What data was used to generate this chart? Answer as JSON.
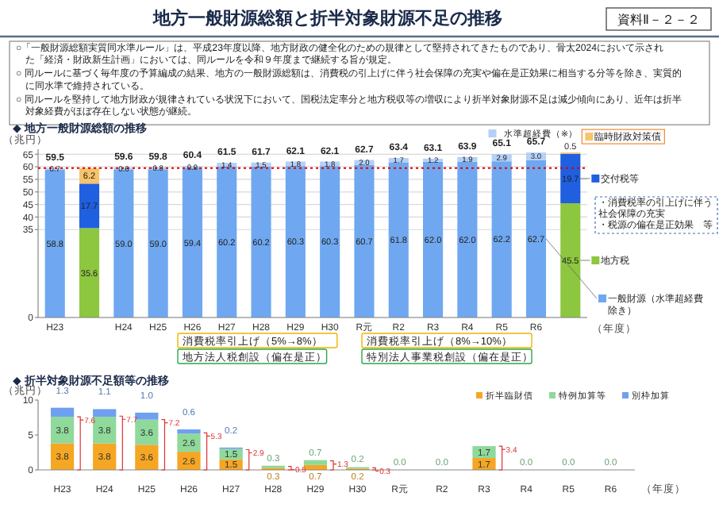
{
  "chart_data": [
    {
      "type": "bar",
      "title": "地方一般財源総額と折半対象財源不足の推移",
      "subtitle": "◆ 地方一般財源総額の推移",
      "ylabel": "（兆円）",
      "xlabel": "（年度）",
      "categories": [
        "H23",
        null,
        "H24",
        "H25",
        "H26",
        "H27",
        "H28",
        "H29",
        "H30",
        "R元",
        "R2",
        "R3",
        "R4",
        "R5",
        "R6",
        null
      ],
      "stacked": true,
      "grid": "y",
      "legend": "right",
      "ylim": [
        0,
        67
      ],
      "yticks": [
        0,
        35,
        40,
        45,
        50,
        55,
        60,
        65
      ],
      "series": [
        {
          "name": "一般財源（水準超経費除き）",
          "color": "#6fa8f0",
          "values": [
            58.8,
            null,
            59.0,
            59.0,
            59.4,
            60.2,
            60.2,
            60.3,
            60.3,
            60.7,
            61.8,
            62.0,
            62.0,
            62.2,
            62.7,
            null
          ],
          "value_labels": [
            "58.8",
            null,
            "59.0",
            "59.0",
            "59.4",
            "60.2",
            "60.2",
            "60.3",
            "60.3",
            "60.7",
            "61.8",
            "62.0",
            "62.0",
            "62.2",
            "62.7",
            null
          ]
        },
        {
          "name": "地方税",
          "color": "#8dc63f",
          "values": [
            null,
            35.6,
            null,
            null,
            null,
            null,
            null,
            null,
            null,
            null,
            null,
            null,
            null,
            null,
            null,
            45.5
          ],
          "value_labels": [
            null,
            "35.6",
            null,
            null,
            null,
            null,
            null,
            null,
            null,
            null,
            null,
            null,
            null,
            null,
            null,
            "45.5"
          ]
        },
        {
          "name": "交付税等",
          "color": "#1f5fe0",
          "values": [
            null,
            17.7,
            null,
            null,
            null,
            null,
            null,
            null,
            null,
            null,
            null,
            null,
            null,
            null,
            null,
            19.7
          ],
          "value_labels": [
            null,
            "17.7",
            null,
            null,
            null,
            null,
            null,
            null,
            null,
            null,
            null,
            null,
            null,
            null,
            null,
            "19.7"
          ]
        },
        {
          "name": "水準超経費（※）",
          "color": "#b5d0f7",
          "values": [
            0.7,
            null,
            0.6,
            0.8,
            0.9,
            1.4,
            1.5,
            1.8,
            1.8,
            2.0,
            1.7,
            1.2,
            1.9,
            2.9,
            3.0,
            null
          ],
          "value_labels": [
            "0.7",
            null,
            "0.6",
            "0.8",
            "0.9",
            "1.4",
            "1.5",
            "1.8",
            "1.8",
            "2.0",
            "1.7",
            "1.2",
            "1.9",
            "2.9",
            "3.0",
            null
          ]
        },
        {
          "name": "臨時財政対策債",
          "color": "#f7c36b",
          "values": [
            null,
            6.2,
            null,
            null,
            null,
            null,
            null,
            null,
            null,
            null,
            null,
            null,
            null,
            null,
            null,
            0.5
          ],
          "value_labels": [
            null,
            "6.2",
            null,
            null,
            null,
            null,
            null,
            null,
            null,
            null,
            null,
            null,
            null,
            null,
            null,
            "0.5"
          ]
        }
      ],
      "totals": [
        "59.5",
        null,
        "59.6",
        "59.8",
        "60.4",
        "61.5",
        "61.7",
        "62.1",
        "62.1",
        "62.7",
        "63.4",
        "63.1",
        "63.9",
        "65.1",
        "65.7",
        null
      ],
      "ref_lines": [
        {
          "axis": "y",
          "value": 59.5,
          "label": null,
          "color": "#e00000",
          "line_style": "dotted"
        }
      ],
      "annotations": [
        "○「一般財源総額実質同水準ルール」は、平成23年度以降、地方財政の健全化のための規律として堅持されてきたものであり、骨太2024において示された「経済・財政新生計画」においては、同ルールを令和９年度まで継続する旨が規定。",
        "○ 同ルールに基づく毎年度の予算編成の結果、地方の一般財源総額は、消費税の引上げに伴う社会保障の充実や偏在是正効果に相当する分等を除き、実質的に同水準で維持されている。",
        "○ 同ルールを堅持して地方財政が規律されている状況下において、国税法定率分と地方税収等の増収により折半対象財源不足は減少傾向にあり、近年は折半対象経費がほぼ存在しない状態が継続。",
        "資料Ⅱ－２－２",
        "消費税率引上げ（5%→8%）",
        "地方法人税創設（偏在是正）",
        "消費税率引上げ（8%→10%）",
        "特別法人事業税創設（偏在是正）",
        "・消費税率の引上げに伴う社会保障の充実",
        "・税源の偏在是正効果　等"
      ]
    },
    {
      "type": "bar",
      "title": "◆ 折半対象財源不足額等の推移",
      "ylabel": "（兆円）",
      "xlabel": "（年度）",
      "categories": [
        "H23",
        "H24",
        "H25",
        "H26",
        "H27",
        "H28",
        "H29",
        "H30",
        "R元",
        "R2",
        "R3",
        "R4",
        "R5",
        "R6"
      ],
      "stacked": true,
      "legend": "top right",
      "ylim": [
        0,
        10
      ],
      "yticks": [
        0,
        5,
        10
      ],
      "series": [
        {
          "name": "折半臨財債",
          "color": "#f5a623",
          "values": [
            3.8,
            3.8,
            3.6,
            2.6,
            1.5,
            0.3,
            0.7,
            0.2,
            0,
            0,
            1.7,
            0,
            0,
            0
          ],
          "value_labels": [
            "3.8",
            "3.8",
            "3.6",
            "2.6",
            "1.5",
            "0.3",
            "0.7",
            "0.2",
            null,
            null,
            "1.7",
            null,
            null,
            null
          ]
        },
        {
          "name": "特例加算等",
          "color": "#8fd99a",
          "values": [
            3.8,
            3.8,
            3.6,
            2.6,
            1.5,
            0.3,
            0.7,
            0.2,
            0,
            0,
            1.7,
            0,
            0,
            0
          ],
          "value_labels": [
            "3.8",
            "3.8",
            "3.6",
            "2.6",
            "1.5",
            "0.3",
            "0.7",
            "0.2",
            "0.0",
            "0.0",
            "1.7",
            "0.0",
            "0.0",
            "0.0"
          ]
        },
        {
          "name": "別枠加算",
          "color": "#6fa0f0",
          "values": [
            1.3,
            1.1,
            1.0,
            0.6,
            0.2,
            0,
            0,
            0,
            0,
            0,
            0,
            0,
            0,
            0
          ],
          "value_labels": [
            "1.3",
            "1.1",
            "1.0",
            "0.6",
            "0.2",
            null,
            null,
            null,
            null,
            null,
            null,
            null,
            null,
            null
          ]
        }
      ],
      "annotations": [
        {
          "text": "7.6",
          "x": "H23",
          "y": 7.6
        },
        {
          "text": "7.7",
          "x": "H24",
          "y": 7.7
        },
        {
          "text": "7.2",
          "x": "H25",
          "y": 7.2
        },
        {
          "text": "5.3",
          "x": "H26",
          "y": 5.3
        },
        {
          "text": "2.9",
          "x": "H27",
          "y": 2.9
        },
        {
          "text": "0.5",
          "x": "H28",
          "y": 0.5
        },
        {
          "text": "1.3",
          "x": "H29",
          "y": 1.3
        },
        {
          "text": "0.3",
          "x": "H30",
          "y": 0.3
        },
        {
          "text": "3.4",
          "x": "R3",
          "y": 3.4
        }
      ]
    }
  ]
}
